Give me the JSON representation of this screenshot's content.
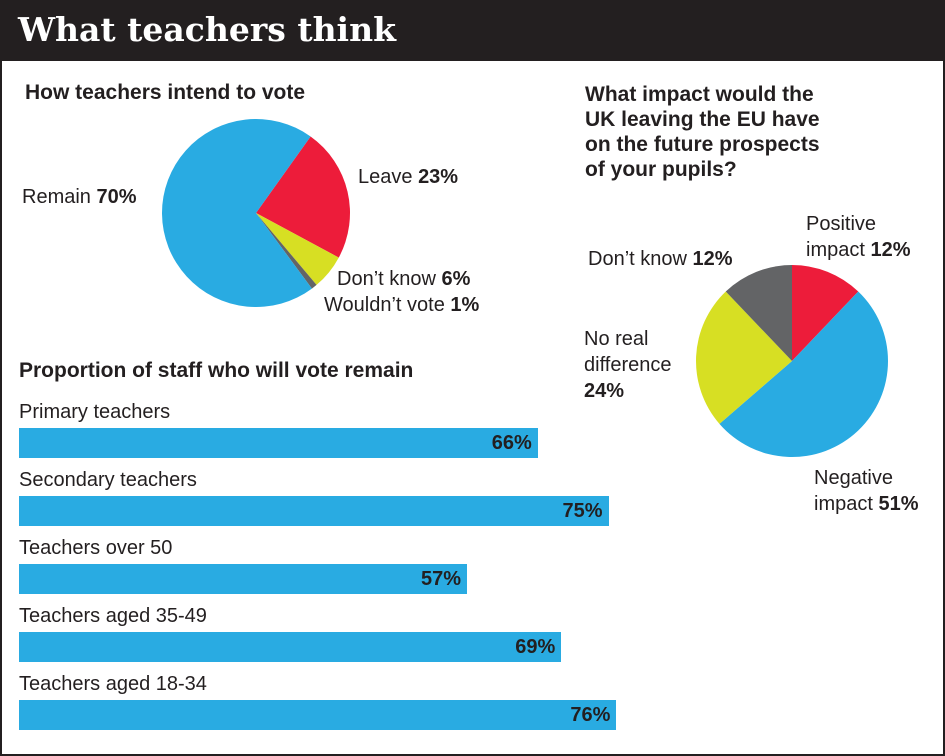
{
  "header": {
    "title": "What teachers think"
  },
  "colors": {
    "blue": "#29abe2",
    "red": "#ed1c3a",
    "yellow": "#d7df23",
    "grey": "#636466",
    "dark": "#231f20"
  },
  "chart_data": [
    {
      "type": "pie",
      "title": "How teachers intend to vote",
      "slices": [
        {
          "name": "Remain",
          "value": 70,
          "label": "70%",
          "color": "#29abe2"
        },
        {
          "name": "Leave",
          "value": 23,
          "label": "23%",
          "color": "#ed1c3a"
        },
        {
          "name": "Don’t know",
          "value": 6,
          "label": "6%",
          "color": "#d7df23"
        },
        {
          "name": "Wouldn’t vote",
          "value": 1,
          "label": "1%",
          "color": "#636466"
        }
      ]
    },
    {
      "type": "pie",
      "title_lines": [
        "What impact would the",
        "UK leaving the EU have",
        "on the future prospects",
        "of your pupils?"
      ],
      "slices": [
        {
          "name_lines": [
            "Positive",
            "impact"
          ],
          "value": 12,
          "label": "12%",
          "color": "#ed1c3a"
        },
        {
          "name_lines": [
            "Negative",
            "impact"
          ],
          "value": 51,
          "label": "51%",
          "color": "#29abe2"
        },
        {
          "name_lines": [
            "No real",
            "difference"
          ],
          "value": 24,
          "label": "24%",
          "color": "#d7df23"
        },
        {
          "name_lines": [
            "Don’t know"
          ],
          "value": 12,
          "label": "12%",
          "color": "#636466"
        }
      ]
    },
    {
      "type": "bar",
      "orientation": "horizontal",
      "title": "Proportion of staff who will vote remain",
      "categories": [
        "Primary teachers",
        "Secondary teachers",
        "Teachers over 50",
        "Teachers aged 35-49",
        "Teachers aged 18-34"
      ],
      "values": [
        66,
        75,
        57,
        69,
        76
      ],
      "value_labels": [
        "66%",
        "75%",
        "57%",
        "69%",
        "76%"
      ],
      "color": "#29abe2"
    }
  ]
}
